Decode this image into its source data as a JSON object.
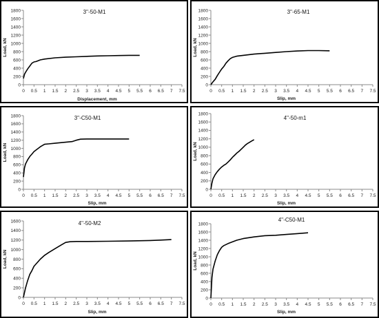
{
  "chart_data": [
    {
      "type": "line",
      "title": "3''-50-M1",
      "xlabel": "Displacement, mm",
      "ylabel": "Load, kN",
      "xlim": [
        0,
        7.5
      ],
      "ylim": [
        0,
        1800
      ],
      "xticks": [
        "0",
        "0.5",
        "1",
        "1.5",
        "2",
        "2.5",
        "3",
        "3.5",
        "4",
        "4.5",
        "5",
        "5.5",
        "6",
        "6.5",
        "7",
        "7.5"
      ],
      "yticks": [
        "0",
        "200",
        "400",
        "600",
        "800",
        "1000",
        "1200",
        "1400",
        "1600",
        "1800"
      ],
      "grid": false,
      "x": [
        0,
        0.05,
        0.1,
        0.2,
        0.3,
        0.4,
        0.5,
        0.6,
        0.8,
        1.0,
        1.5,
        2.0,
        2.5,
        3.0,
        3.5,
        4.0,
        4.5,
        5.0,
        5.5
      ],
      "y": [
        150,
        250,
        300,
        380,
        450,
        520,
        550,
        560,
        600,
        620,
        650,
        665,
        675,
        685,
        695,
        700,
        705,
        710,
        710
      ]
    },
    {
      "type": "line",
      "title": "3''-65-M1",
      "xlabel": "Slip, mm",
      "ylabel": "Load, kN",
      "xlim": [
        0,
        7.5
      ],
      "ylim": [
        0,
        1800
      ],
      "xticks": [
        "0",
        "0.5",
        "1",
        "1.5",
        "2",
        "2.5",
        "3",
        "3.5",
        "4",
        "4.5",
        "5",
        "5.5",
        "6",
        "6.5",
        "7",
        "7.5"
      ],
      "yticks": [
        "0",
        "200",
        "400",
        "600",
        "800",
        "1000",
        "1200",
        "1400",
        "1600",
        "1800"
      ],
      "grid": false,
      "x": [
        0,
        0.1,
        0.2,
        0.3,
        0.4,
        0.5,
        0.6,
        0.7,
        0.8,
        0.9,
        1.0,
        1.2,
        1.5,
        2.0,
        2.5,
        3.0,
        3.5,
        4.0,
        4.5,
        5.0,
        5.5
      ],
      "y": [
        0,
        70,
        130,
        220,
        300,
        380,
        440,
        520,
        580,
        630,
        660,
        690,
        710,
        740,
        760,
        780,
        800,
        815,
        825,
        825,
        820
      ]
    },
    {
      "type": "line",
      "title": "3''-C50-M1",
      "xlabel": "Slip, mm",
      "ylabel": "Load, kN",
      "xlim": [
        0,
        7.5
      ],
      "ylim": [
        0,
        1800
      ],
      "xticks": [
        "0",
        "0.5",
        "1",
        "1.5",
        "2",
        "2.5",
        "3",
        "3.5",
        "4",
        "4.5",
        "5",
        "5.5",
        "6",
        "6.5",
        "7",
        "7.5"
      ],
      "yticks": [
        "0",
        "200",
        "400",
        "600",
        "800",
        "1000",
        "1200",
        "1400",
        "1600",
        "1800"
      ],
      "grid": false,
      "x": [
        0,
        0.05,
        0.1,
        0.2,
        0.3,
        0.4,
        0.5,
        0.6,
        0.8,
        1.0,
        1.2,
        1.5,
        2.0,
        2.3,
        2.5,
        2.7,
        3.0,
        3.5,
        4.0,
        4.5,
        5.0
      ],
      "y": [
        300,
        520,
        620,
        720,
        800,
        860,
        920,
        960,
        1040,
        1100,
        1110,
        1125,
        1150,
        1165,
        1200,
        1225,
        1230,
        1230,
        1230,
        1230,
        1230
      ]
    },
    {
      "type": "line",
      "title": "4''-50-m1",
      "xlabel": "Slip, mm",
      "ylabel": "Load, kN",
      "xlim": [
        0,
        7.5
      ],
      "ylim": [
        0,
        1800
      ],
      "xticks": [
        "0",
        "0.5",
        "1",
        "1.5",
        "2",
        "2.5",
        "3",
        "3.5",
        "4",
        "4.5",
        "5",
        "5.5",
        "6",
        "6.5",
        "7",
        "7.5"
      ],
      "yticks": [
        "0",
        "200",
        "400",
        "600",
        "800",
        "1000",
        "1200",
        "1400",
        "1600",
        "1800"
      ],
      "grid": false,
      "x": [
        0,
        0.05,
        0.1,
        0.2,
        0.3,
        0.4,
        0.5,
        0.6,
        0.7,
        0.8,
        0.9,
        1.0,
        1.1,
        1.2,
        1.3,
        1.4,
        1.5,
        1.6,
        1.7,
        1.8,
        1.9,
        2.0
      ],
      "y": [
        0,
        150,
        250,
        350,
        420,
        480,
        530,
        570,
        600,
        650,
        700,
        760,
        810,
        860,
        900,
        950,
        1000,
        1050,
        1090,
        1120,
        1150,
        1180
      ]
    },
    {
      "type": "line",
      "title": "4''-50-M2",
      "xlabel": "Slip, mm",
      "ylabel": "Load, kN",
      "xlim": [
        0,
        7.5
      ],
      "ylim": [
        0,
        1600
      ],
      "xticks": [
        "0",
        "0.5",
        "1",
        "1.5",
        "2",
        "2.5",
        "3",
        "3.5",
        "4",
        "4.5",
        "5",
        "5.5",
        "6",
        "6.5",
        "7",
        "7.5"
      ],
      "yticks": [
        "0",
        "200",
        "400",
        "600",
        "800",
        "1000",
        "1200",
        "1400",
        "1600"
      ],
      "grid": false,
      "x": [
        0,
        0.1,
        0.2,
        0.3,
        0.4,
        0.5,
        0.6,
        0.8,
        1.0,
        1.2,
        1.5,
        1.8,
        2.0,
        2.2,
        2.5,
        3.0,
        4.0,
        5.0,
        6.0,
        6.5,
        7.0
      ],
      "y": [
        0,
        200,
        350,
        480,
        560,
        650,
        700,
        800,
        880,
        940,
        1020,
        1100,
        1150,
        1165,
        1170,
        1170,
        1175,
        1180,
        1190,
        1200,
        1210
      ]
    },
    {
      "type": "line",
      "title": "4''-C50-M1",
      "xlabel": "Slip, mm",
      "ylabel": "Load, kN",
      "xlim": [
        0,
        7.5
      ],
      "ylim": [
        0,
        1800
      ],
      "xticks": [
        "0",
        "0.5",
        "1",
        "1.5",
        "2",
        "2.5",
        "3",
        "3.5",
        "4",
        "4.5",
        "5",
        "5.5",
        "6",
        "6.5",
        "7",
        "7.5"
      ],
      "yticks": [
        "0",
        "200",
        "400",
        "600",
        "800",
        "1000",
        "1200",
        "1400",
        "1600",
        "1800"
      ],
      "grid": false,
      "x": [
        0,
        0.05,
        0.1,
        0.2,
        0.3,
        0.4,
        0.5,
        0.6,
        0.8,
        1.0,
        1.2,
        1.5,
        2.0,
        2.5,
        3.0,
        3.5,
        4.0,
        4.5
      ],
      "y": [
        0,
        500,
        700,
        900,
        1050,
        1150,
        1230,
        1270,
        1320,
        1360,
        1400,
        1440,
        1480,
        1510,
        1520,
        1540,
        1560,
        1580
      ]
    }
  ]
}
